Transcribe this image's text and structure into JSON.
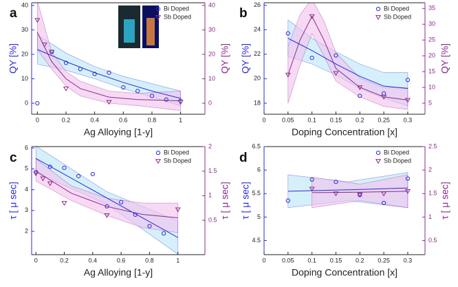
{
  "chart_data": [
    {
      "type": "scatter",
      "panel": "a",
      "xlabel": "Ag Alloying [1-y]",
      "ylabel": "QY [%]",
      "y2label": "QY [%]",
      "xlim": [
        -0.04,
        1.17
      ],
      "xticks": [
        0,
        0.2,
        0.4,
        0.6,
        0.8,
        1
      ],
      "ylim": [
        -4.5,
        41.1
      ],
      "yticks": [
        0,
        10,
        20,
        30,
        40
      ],
      "y2lim": [
        -4.5,
        41.1
      ],
      "y2ticks": [
        0,
        10,
        20,
        30,
        40
      ],
      "series": [
        {
          "name": "Bi Doped",
          "color": "#2b2bd6",
          "marker": "circle",
          "x": [
            0,
            0.1,
            0.2,
            0.3,
            0.4,
            0.5,
            0.6,
            0.7,
            0.8,
            0.9,
            1
          ],
          "values": [
            0,
            21,
            16.5,
            14,
            12,
            12.5,
            6.5,
            5,
            3,
            1.5,
            1
          ],
          "fit": {
            "color": "#b9e6f7",
            "x": [
              0,
              0.2,
              0.4,
              0.6,
              0.8,
              1
            ],
            "values": [
              22,
              17,
              12.5,
              8.5,
              5,
              2
            ],
            "lower": [
              16,
              13.5,
              10,
              6,
              2.5,
              -1
            ],
            "upper": [
              28,
              20.5,
              15,
              11,
              8,
              5
            ]
          }
        },
        {
          "name": "Sb Doped",
          "color": "#8a2a8a",
          "marker": "triangle",
          "axis": "y2",
          "x": [
            0,
            0.05,
            0.1,
            0.2,
            0.5,
            1
          ],
          "values": [
            34,
            24,
            21,
            6,
            0.5,
            0.5
          ],
          "fit": {
            "color": "#f3c0ec",
            "x": [
              0,
              0.1,
              0.2,
              0.3,
              0.5,
              0.7,
              1
            ],
            "values": [
              29,
              17,
              10,
              6,
              2.5,
              1.5,
              1
            ],
            "lower": [
              22,
              14,
              7,
              3,
              0,
              -1,
              -3
            ],
            "upper": [
              42,
              21,
              13,
              9,
              5,
              4,
              5
            ]
          }
        }
      ]
    },
    {
      "type": "scatter",
      "panel": "b",
      "xlabel": "Doping Concentration [x]",
      "ylabel": "QY [%]",
      "y2label": "QY [%]",
      "xlim": [
        0,
        0.336
      ],
      "xticks": [
        0,
        0.05,
        0.1,
        0.15,
        0.2,
        0.25,
        0.3
      ],
      "ylim": [
        17.1,
        26.2
      ],
      "yticks": [
        18,
        20,
        22,
        24,
        26
      ],
      "y2lim": [
        1.5,
        36.8
      ],
      "y2ticks": [
        5,
        10,
        15,
        20,
        25,
        30,
        35
      ],
      "series": [
        {
          "name": "Bi Doped",
          "color": "#2b2bd6",
          "marker": "circle",
          "x": [
            0.05,
            0.1,
            0.15,
            0.2,
            0.25,
            0.3
          ],
          "values": [
            23.7,
            21.7,
            21.9,
            18.6,
            18.8,
            19.9
          ],
          "fit": {
            "color": "#b9e6f7",
            "x": [
              0.05,
              0.1,
              0.15,
              0.2,
              0.25,
              0.3
            ],
            "values": [
              23.3,
              22.3,
              21.2,
              20.2,
              19.4,
              19.2
            ],
            "lower": [
              21.8,
              21.2,
              20.3,
              19.2,
              18.4,
              17.8
            ],
            "upper": [
              24.8,
              23.3,
              22.2,
              21.2,
              20.5,
              20.5
            ]
          }
        },
        {
          "name": "Sb Doped",
          "color": "#8a2a8a",
          "marker": "triangle",
          "axis": "y2",
          "x": [
            0.05,
            0.1,
            0.15,
            0.2,
            0.25,
            0.3
          ],
          "values": [
            14,
            32.5,
            14.5,
            10,
            7,
            6
          ],
          "fit": {
            "color": "#f3c0ec",
            "x": [
              0.05,
              0.075,
              0.1,
              0.125,
              0.15,
              0.2,
              0.25,
              0.3
            ],
            "values": [
              14,
              25,
              32.5,
              25,
              16,
              10,
              7,
              6
            ],
            "lower": [
              5,
              17,
              27,
              20,
              12,
              7,
              4,
              3
            ],
            "upper": [
              23,
              33,
              38,
              31,
              21,
              13,
              10,
              10
            ]
          }
        }
      ]
    },
    {
      "type": "scatter",
      "panel": "c",
      "xlabel": "Ag Alloying [1-y]",
      "ylabel": "τ [ μ sec]",
      "y2label": "τ [ μ sec]",
      "xlim": [
        -0.03,
        1.19
      ],
      "xticks": [
        0,
        0.2,
        0.4,
        0.6,
        0.8,
        1
      ],
      "ylim": [
        0.88,
        6.07
      ],
      "yticks": [
        2,
        3,
        4,
        5,
        6
      ],
      "y2lim": [
        -0.2,
        2
      ],
      "y2ticks": [
        0.5,
        1,
        1.5,
        2
      ],
      "series": [
        {
          "name": "Bi Doped",
          "color": "#2b2bd6",
          "marker": "circle",
          "x": [
            0,
            0.1,
            0.2,
            0.3,
            0.4,
            0.5,
            0.6,
            0.7,
            0.8,
            0.9
          ],
          "values": [
            4.85,
            5.1,
            5.05,
            4.65,
            4.75,
            3.2,
            3.4,
            2.8,
            2.25,
            1.9
          ],
          "fit": {
            "color": "#b9e6f7",
            "x": [
              0,
              0.5,
              1
            ],
            "values": [
              5.5,
              3.6,
              1.7
            ],
            "lower": [
              4.8,
              3.3,
              0.9
            ],
            "upper": [
              6.1,
              3.9,
              2.5
            ]
          }
        },
        {
          "name": "Sb Doped",
          "color": "#8a2a8a",
          "marker": "triangle",
          "axis": "y2",
          "x": [
            0,
            0.05,
            0.1,
            0.2,
            0.5,
            1
          ],
          "values": [
            1.45,
            1.35,
            1.25,
            0.85,
            0.6,
            0.72
          ],
          "fit": {
            "color": "#f3c0ec",
            "x": [
              0,
              0.25,
              0.5,
              0.75,
              1
            ],
            "values": [
              1.5,
              1.05,
              0.78,
              0.62,
              0.55
            ],
            "lower": [
              1.3,
              0.9,
              0.6,
              0.35,
              0.25
            ],
            "upper": [
              1.75,
              1.2,
              0.95,
              0.85,
              0.85
            ]
          }
        }
      ]
    },
    {
      "type": "scatter",
      "panel": "d",
      "xlabel": "Doping Concentration [x]",
      "ylabel": "τ [ μ sec]",
      "y2label": "τ [ μ sec]",
      "xlim": [
        0,
        0.336
      ],
      "xticks": [
        0,
        0.05,
        0.1,
        0.15,
        0.2,
        0.25,
        0.3
      ],
      "ylim": [
        4.2,
        6.5
      ],
      "yticks": [
        4.5,
        5,
        5.5,
        6,
        6.5
      ],
      "y2lim": [
        0.2,
        2.5
      ],
      "y2ticks": [
        0.5,
        1,
        1.5,
        2,
        2.5
      ],
      "series": [
        {
          "name": "Bi Doped",
          "color": "#2b2bd6",
          "marker": "circle",
          "x": [
            0.05,
            0.1,
            0.15,
            0.2,
            0.25,
            0.3
          ],
          "values": [
            5.35,
            5.8,
            5.75,
            5.47,
            5.3,
            5.82
          ],
          "fit": {
            "color": "#b9e6f7",
            "x": [
              0.05,
              0.175,
              0.3
            ],
            "values": [
              5.55,
              5.58,
              5.62
            ],
            "lower": [
              5.2,
              5.35,
              5.2
            ],
            "upper": [
              5.9,
              5.75,
              5.95
            ]
          }
        },
        {
          "name": "Sb Doped",
          "color": "#8a2a8a",
          "marker": "triangle",
          "axis": "y2",
          "x": [
            0.1,
            0.15,
            0.2,
            0.25,
            0.3
          ],
          "values": [
            1.6,
            1.5,
            1.48,
            1.5,
            1.55
          ],
          "fit": {
            "color": "#f3c0ec",
            "x": [
              0.1,
              0.2,
              0.3
            ],
            "values": [
              1.52,
              1.53,
              1.55
            ],
            "lower": [
              1.2,
              1.35,
              1.2
            ],
            "upper": [
              1.85,
              1.7,
              1.9
            ]
          }
        }
      ]
    }
  ]
}
